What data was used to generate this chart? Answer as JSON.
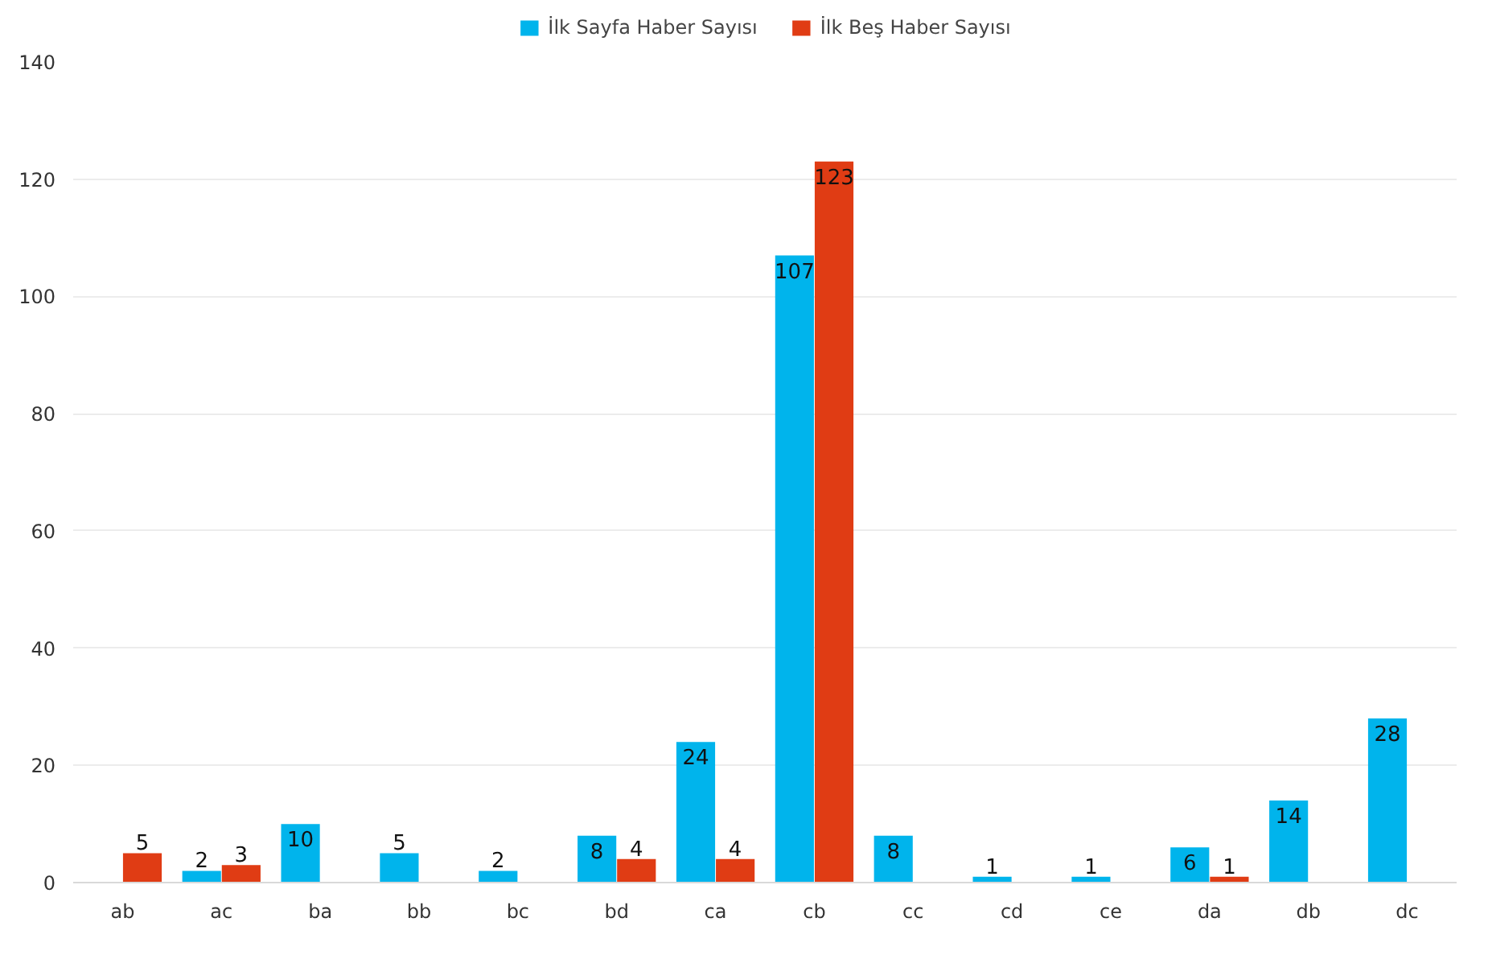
{
  "chart_data": {
    "type": "bar",
    "categories": [
      "ab",
      "ac",
      "ba",
      "bb",
      "bc",
      "bd",
      "ca",
      "cb",
      "cc",
      "cd",
      "ce",
      "da",
      "db",
      "dc"
    ],
    "series": [
      {
        "name": "İlk Sayfa Haber Sayısı",
        "color": "#00b4ec",
        "values": [
          null,
          2,
          10,
          5,
          2,
          8,
          24,
          107,
          8,
          1,
          1,
          6,
          14,
          28
        ]
      },
      {
        "name": "İlk Beş Haber Sayısı",
        "color": "#e03c14",
        "values": [
          5,
          3,
          null,
          null,
          null,
          4,
          4,
          123,
          null,
          null,
          null,
          1,
          null,
          null
        ]
      }
    ],
    "ylim": [
      0,
      140
    ],
    "yticks": [
      0,
      20,
      40,
      60,
      80,
      100,
      120,
      140
    ],
    "grid": "y",
    "legend": "top",
    "data_labels": true
  }
}
